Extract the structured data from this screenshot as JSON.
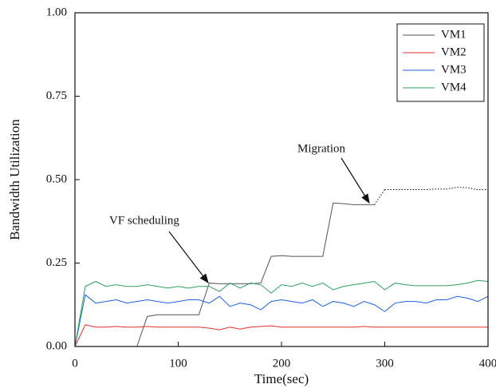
{
  "chart_data": {
    "type": "line",
    "x_label": "Time(sec)",
    "y_label": "Bandwidth Utilization",
    "x": [
      0,
      10,
      20,
      30,
      40,
      50,
      60,
      70,
      80,
      90,
      100,
      110,
      120,
      130,
      140,
      150,
      160,
      170,
      180,
      190,
      200,
      210,
      220,
      230,
      240,
      250,
      260,
      270,
      280,
      290,
      300,
      310,
      320,
      330,
      340,
      350,
      360,
      370,
      380,
      390,
      400
    ],
    "series": [
      {
        "name": "VM1",
        "color": "#555555",
        "dotted_after_x": 290,
        "values": [
          0,
          0,
          0,
          0,
          0,
          0,
          0,
          0.09,
          0.095,
          0.095,
          0.095,
          0.095,
          0.095,
          0.19,
          0.188,
          0.188,
          0.188,
          0.188,
          0.19,
          0.27,
          0.272,
          0.27,
          0.27,
          0.27,
          0.27,
          0.43,
          0.428,
          0.425,
          0.425,
          0.425,
          0.47,
          0.47,
          0.47,
          0.47,
          0.47,
          0.472,
          0.472,
          0.477,
          0.476,
          0.47,
          0.47
        ]
      },
      {
        "name": "VM2",
        "color": "#e03030",
        "values": [
          0,
          0.065,
          0.058,
          0.058,
          0.06,
          0.058,
          0.058,
          0.06,
          0.058,
          0.058,
          0.058,
          0.058,
          0.058,
          0.055,
          0.05,
          0.058,
          0.052,
          0.058,
          0.06,
          0.062,
          0.058,
          0.058,
          0.058,
          0.058,
          0.058,
          0.058,
          0.058,
          0.058,
          0.06,
          0.058,
          0.058,
          0.058,
          0.058,
          0.058,
          0.058,
          0.058,
          0.058,
          0.058,
          0.058,
          0.058,
          0.058
        ]
      },
      {
        "name": "VM3",
        "color": "#2060e0",
        "values": [
          0,
          0.155,
          0.13,
          0.135,
          0.14,
          0.13,
          0.135,
          0.14,
          0.135,
          0.13,
          0.135,
          0.14,
          0.14,
          0.13,
          0.15,
          0.12,
          0.13,
          0.125,
          0.11,
          0.135,
          0.14,
          0.135,
          0.13,
          0.14,
          0.12,
          0.135,
          0.13,
          0.12,
          0.135,
          0.125,
          0.105,
          0.13,
          0.135,
          0.135,
          0.13,
          0.14,
          0.14,
          0.15,
          0.145,
          0.135,
          0.15
        ]
      },
      {
        "name": "VM4",
        "color": "#30a060",
        "values": [
          0,
          0.18,
          0.195,
          0.18,
          0.185,
          0.18,
          0.18,
          0.185,
          0.18,
          0.175,
          0.18,
          0.175,
          0.18,
          0.18,
          0.165,
          0.19,
          0.175,
          0.19,
          0.185,
          0.16,
          0.185,
          0.18,
          0.19,
          0.18,
          0.19,
          0.17,
          0.18,
          0.185,
          0.19,
          0.195,
          0.17,
          0.19,
          0.185,
          0.182,
          0.182,
          0.182,
          0.182,
          0.185,
          0.19,
          0.198,
          0.195
        ]
      }
    ],
    "xlim": [
      0,
      400
    ],
    "xticks": [
      0,
      100,
      200,
      300,
      400
    ],
    "ylim": [
      0,
      1
    ],
    "yticks": [
      {
        "value": 0,
        "label": "0.00"
      },
      {
        "value": 0.25,
        "label": "0.25"
      },
      {
        "value": 0.5,
        "label": "0.50"
      },
      {
        "value": 0.75,
        "label": "0.75"
      },
      {
        "value": 1,
        "label": "1.00"
      }
    ],
    "legend": "upper right",
    "annotations": [
      "Migration",
      "VF scheduling"
    ]
  }
}
